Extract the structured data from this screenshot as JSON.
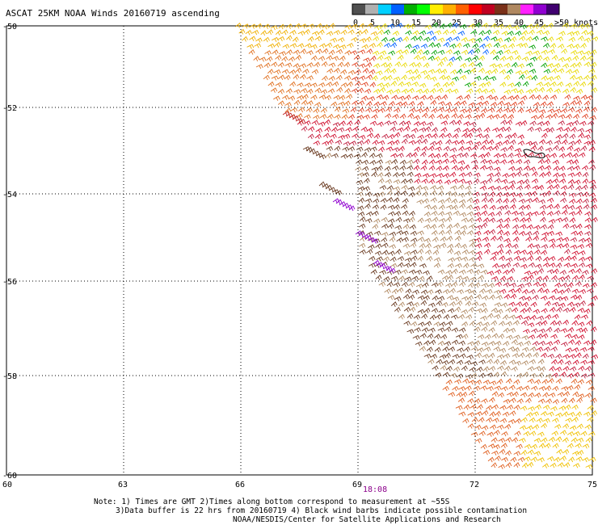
{
  "title": "ASCAT 25KM NOAA Winds 20160719 ascending",
  "legend": {
    "labels": [
      "0",
      "5",
      "10",
      "15",
      "20",
      "25",
      "30",
      "35",
      "40",
      "45",
      ">50 knots"
    ],
    "colors": [
      "#505050",
      "#b0b0b0",
      "#00d0ff",
      "#0060ff",
      "#00b000",
      "#00ff00",
      "#ffee00",
      "#ffb000",
      "#ff6000",
      "#ff0000",
      "#c00020",
      "#7a3018",
      "#b08860",
      "#ff20ff",
      "#9000d0",
      "#400070"
    ]
  },
  "map": {
    "lat_labels": [
      "-50",
      "-52",
      "-54",
      "-56",
      "-58",
      "-60"
    ],
    "lon_labels": [
      "60",
      "63",
      "66",
      "69",
      "72",
      "75"
    ],
    "time_label": "18:08",
    "time_color": "#8b008b"
  },
  "notes": {
    "line1": "Note: 1) Times are GMT 2)Times along bottom correspond to measurement at ~55S",
    "line2": "3)Data buffer is 22 hrs from 20160719 4) Black wind barbs indicate possible contamination",
    "line3": "NOAA/NESDIS/Center for Satellite Applications and Research"
  }
}
